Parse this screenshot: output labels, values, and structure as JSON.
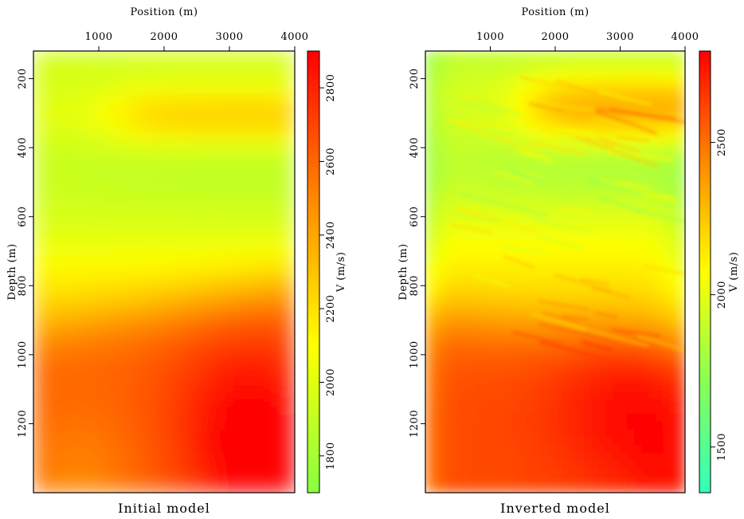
{
  "colors": {
    "frame": "#000000",
    "background": "#ffffff"
  },
  "chart_data": [
    {
      "type": "heatmap",
      "caption": "Initial model",
      "xlabel": "Position (m)",
      "ylabel": "Depth (m)",
      "xlim": [
        0,
        4000
      ],
      "ylim": [
        1400,
        120
      ],
      "x_ticks": [
        "1000",
        "2000",
        "3000",
        "4000"
      ],
      "y_ticks": [
        "200",
        "400",
        "600",
        "800",
        "1000",
        "1200"
      ],
      "colorbar": {
        "label": "V (m/s)",
        "range": [
          1700,
          2900
        ],
        "ticks": [
          "1800",
          "2000",
          "2200",
          "2400",
          "2600",
          "2800"
        ],
        "colormap": [
          "#88ff44",
          "#ffff00",
          "#ff8800",
          "#ff0000"
        ]
      },
      "field_features": [
        {
          "feature": "shallow layer",
          "depth_range": [
            120,
            250
          ],
          "velocity": 1950
        },
        {
          "feature": "high-velocity lens",
          "depth_range": [
            250,
            380
          ],
          "x_range": [
            1200,
            4000
          ],
          "velocity": 2200
        },
        {
          "feature": "low-velocity zone",
          "depth_range": [
            380,
            620
          ],
          "velocity": 1900
        },
        {
          "feature": "gradient zone",
          "depth_range": [
            620,
            900
          ],
          "velocity": 2150
        },
        {
          "feature": "deep high-velocity body",
          "depth_range": [
            900,
            1400
          ],
          "velocity": 2750
        }
      ]
    },
    {
      "type": "heatmap",
      "caption": "Inverted model",
      "xlabel": "Position (m)",
      "ylabel": "Depth (m)",
      "xlim": [
        0,
        4000
      ],
      "ylim": [
        1400,
        120
      ],
      "x_ticks": [
        "1000",
        "2000",
        "3000",
        "4000"
      ],
      "y_ticks": [
        "200",
        "400",
        "600",
        "800",
        "1000",
        "1200"
      ],
      "colorbar": {
        "label": "V (m/s)",
        "range": [
          1350,
          2800
        ],
        "ticks": [
          "1500",
          "2000",
          "2500"
        ],
        "colormap": [
          "#33ffbb",
          "#88ff55",
          "#ffff00",
          "#ff8800",
          "#ff0000"
        ]
      },
      "field_features": [
        {
          "feature": "shallow layer",
          "depth_range": [
            120,
            250
          ],
          "velocity": 1950
        },
        {
          "feature": "high-velocity lens (striped)",
          "depth_range": [
            200,
            380
          ],
          "x_range": [
            1500,
            4000
          ],
          "velocity": 2350
        },
        {
          "feature": "low-velocity zone",
          "depth_range": [
            380,
            560
          ],
          "velocity": 1900
        },
        {
          "feature": "dipping layered zone",
          "depth_range": [
            560,
            900
          ],
          "velocity": 2200
        },
        {
          "feature": "deep high-velocity body",
          "depth_range": [
            900,
            1400
          ],
          "velocity": 2600
        }
      ]
    }
  ]
}
